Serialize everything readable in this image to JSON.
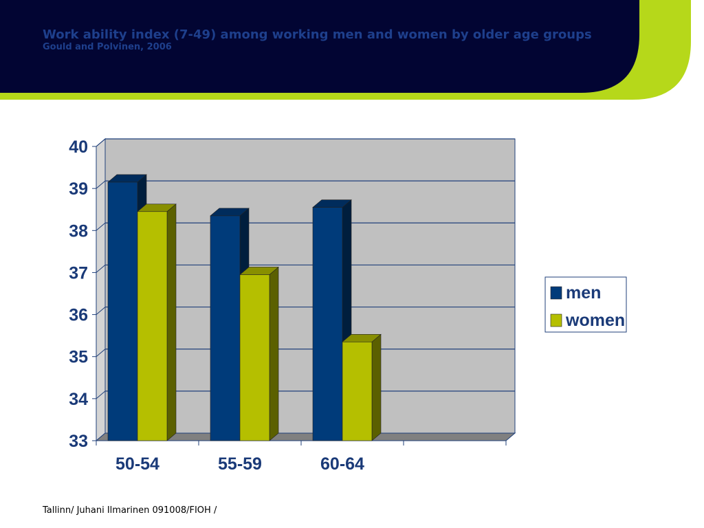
{
  "slide": {
    "title": "Work ability index (7-49) among working men and women by older age groups",
    "subtitle": "Gould and Polvinen, 2006",
    "footer": "Tallinn/ Juhani Ilmarinen 091008/FIOH /"
  },
  "colors": {
    "banner_dark": "#020533",
    "banner_accent": "#b6d81a",
    "title_text": "#1e3f8c",
    "men": "#003b7a",
    "women": "#b5bf00",
    "plot_bg": "#c0c0c0",
    "axis_text": "#1a3a78"
  },
  "chart_data": {
    "type": "bar",
    "categories": [
      "50-54",
      "55-59",
      "60-64"
    ],
    "series": [
      {
        "name": "men",
        "values": [
          39.15,
          38.35,
          38.55
        ]
      },
      {
        "name": "women",
        "values": [
          38.45,
          36.95,
          35.35
        ]
      }
    ],
    "ylim": [
      33,
      40
    ],
    "yticks": [
      "33",
      "34",
      "35",
      "36",
      "37",
      "38",
      "39",
      "40"
    ],
    "grid": true,
    "legend": "right",
    "style": "3d-clustered-column"
  }
}
